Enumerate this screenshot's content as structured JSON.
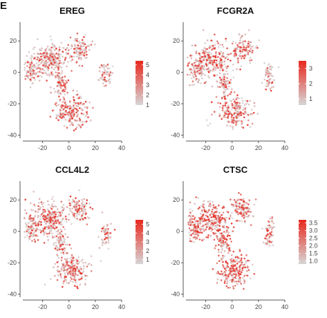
{
  "panel_label": "E",
  "colors": {
    "low": "#d6d6d6",
    "high": "#e8281e",
    "axis": "#555555",
    "tick_text": "#444444"
  },
  "chart_data": [
    {
      "type": "scatter",
      "title": "EREG",
      "xlabel": "",
      "ylabel": "",
      "xlim": [
        -35,
        40
      ],
      "ylim": [
        -42,
        32
      ],
      "xticks": [
        "-20",
        "0",
        "20",
        "40"
      ],
      "yticks": [
        "20",
        "0",
        "-20",
        "-40"
      ],
      "colorbar_ticks": [
        "5",
        "4",
        "3",
        "2",
        "1"
      ],
      "color_range": [
        1,
        5.4
      ],
      "grid": false,
      "intensity": 0.55,
      "clusters": [
        {
          "label": "upper-left",
          "center": [
            -15,
            8
          ],
          "spread": [
            10,
            8
          ],
          "expression": 0.35
        },
        {
          "label": "left-tail",
          "center": [
            -28,
            2
          ],
          "spread": [
            5,
            6
          ],
          "expression": 0.3
        },
        {
          "label": "upper-middle",
          "center": [
            8,
            14
          ],
          "spread": [
            6,
            6
          ],
          "expression": 0.45
        },
        {
          "label": "middle",
          "center": [
            -6,
            -8
          ],
          "spread": [
            4,
            6
          ],
          "expression": 0.85
        },
        {
          "label": "lower",
          "center": [
            2,
            -25
          ],
          "spread": [
            9,
            7
          ],
          "expression": 0.8
        },
        {
          "label": "right-small",
          "center": [
            28,
            -2
          ],
          "spread": [
            3,
            6
          ],
          "expression": 0.25
        }
      ]
    },
    {
      "type": "scatter",
      "title": "FCGR2A",
      "xlabel": "",
      "ylabel": "",
      "xlim": [
        -35,
        40
      ],
      "ylim": [
        -42,
        32
      ],
      "xticks": [
        "-20",
        "0",
        "20",
        "40"
      ],
      "yticks": [
        "20",
        "0",
        "-20",
        "-40"
      ],
      "colorbar_ticks": [
        "3",
        "2",
        "1"
      ],
      "color_range": [
        0.6,
        3.5
      ],
      "grid": false,
      "intensity": 0.6,
      "clusters": [
        {
          "label": "upper-left",
          "center": [
            -15,
            8
          ],
          "spread": [
            10,
            8
          ],
          "expression": 0.55
        },
        {
          "label": "left-tail",
          "center": [
            -28,
            2
          ],
          "spread": [
            5,
            6
          ],
          "expression": 0.5
        },
        {
          "label": "upper-middle",
          "center": [
            8,
            14
          ],
          "spread": [
            6,
            6
          ],
          "expression": 0.55
        },
        {
          "label": "middle",
          "center": [
            -6,
            -8
          ],
          "spread": [
            4,
            6
          ],
          "expression": 0.5
        },
        {
          "label": "lower",
          "center": [
            2,
            -25
          ],
          "spread": [
            9,
            7
          ],
          "expression": 0.7
        },
        {
          "label": "right-small",
          "center": [
            28,
            -2
          ],
          "spread": [
            3,
            6
          ],
          "expression": 0.3
        }
      ]
    },
    {
      "type": "scatter",
      "title": "CCL4L2",
      "xlabel": "",
      "ylabel": "",
      "xlim": [
        -35,
        40
      ],
      "ylim": [
        -42,
        32
      ],
      "xticks": [
        "-20",
        "0",
        "20",
        "40"
      ],
      "yticks": [
        "20",
        "0",
        "-20",
        "-40"
      ],
      "colorbar_ticks": [
        "5",
        "4",
        "3",
        "2",
        "1"
      ],
      "color_range": [
        0.5,
        5.5
      ],
      "grid": false,
      "intensity": 0.6,
      "clusters": [
        {
          "label": "upper-left",
          "center": [
            -15,
            8
          ],
          "spread": [
            10,
            8
          ],
          "expression": 0.5
        },
        {
          "label": "left-tail",
          "center": [
            -28,
            2
          ],
          "spread": [
            5,
            6
          ],
          "expression": 0.45
        },
        {
          "label": "upper-middle",
          "center": [
            8,
            14
          ],
          "spread": [
            6,
            6
          ],
          "expression": 0.45
        },
        {
          "label": "middle",
          "center": [
            -6,
            -8
          ],
          "spread": [
            4,
            6
          ],
          "expression": 0.55
        },
        {
          "label": "lower",
          "center": [
            2,
            -25
          ],
          "spread": [
            9,
            7
          ],
          "expression": 0.65
        },
        {
          "label": "right-small",
          "center": [
            28,
            -2
          ],
          "spread": [
            3,
            6
          ],
          "expression": 0.25
        }
      ]
    },
    {
      "type": "scatter",
      "title": "CTSC",
      "xlabel": "",
      "ylabel": "",
      "xlim": [
        -35,
        40
      ],
      "ylim": [
        -42,
        32
      ],
      "xticks": [
        "-20",
        "0",
        "20",
        "40"
      ],
      "yticks": [
        "20",
        "0",
        "-20",
        "-40"
      ],
      "colorbar_ticks": [
        "3.5",
        "3.0",
        "2.5",
        "2.0",
        "1.5",
        "1.0"
      ],
      "color_range": [
        0.8,
        3.7
      ],
      "grid": false,
      "intensity": 0.75,
      "clusters": [
        {
          "label": "upper-left",
          "center": [
            -15,
            8
          ],
          "spread": [
            10,
            8
          ],
          "expression": 0.7
        },
        {
          "label": "left-tail",
          "center": [
            -28,
            2
          ],
          "spread": [
            5,
            6
          ],
          "expression": 0.65
        },
        {
          "label": "upper-middle",
          "center": [
            8,
            14
          ],
          "spread": [
            6,
            6
          ],
          "expression": 0.6
        },
        {
          "label": "middle",
          "center": [
            -6,
            -8
          ],
          "spread": [
            4,
            6
          ],
          "expression": 0.7
        },
        {
          "label": "lower",
          "center": [
            2,
            -25
          ],
          "spread": [
            9,
            7
          ],
          "expression": 0.85
        },
        {
          "label": "right-small",
          "center": [
            28,
            -2
          ],
          "spread": [
            3,
            6
          ],
          "expression": 0.4
        }
      ]
    }
  ]
}
